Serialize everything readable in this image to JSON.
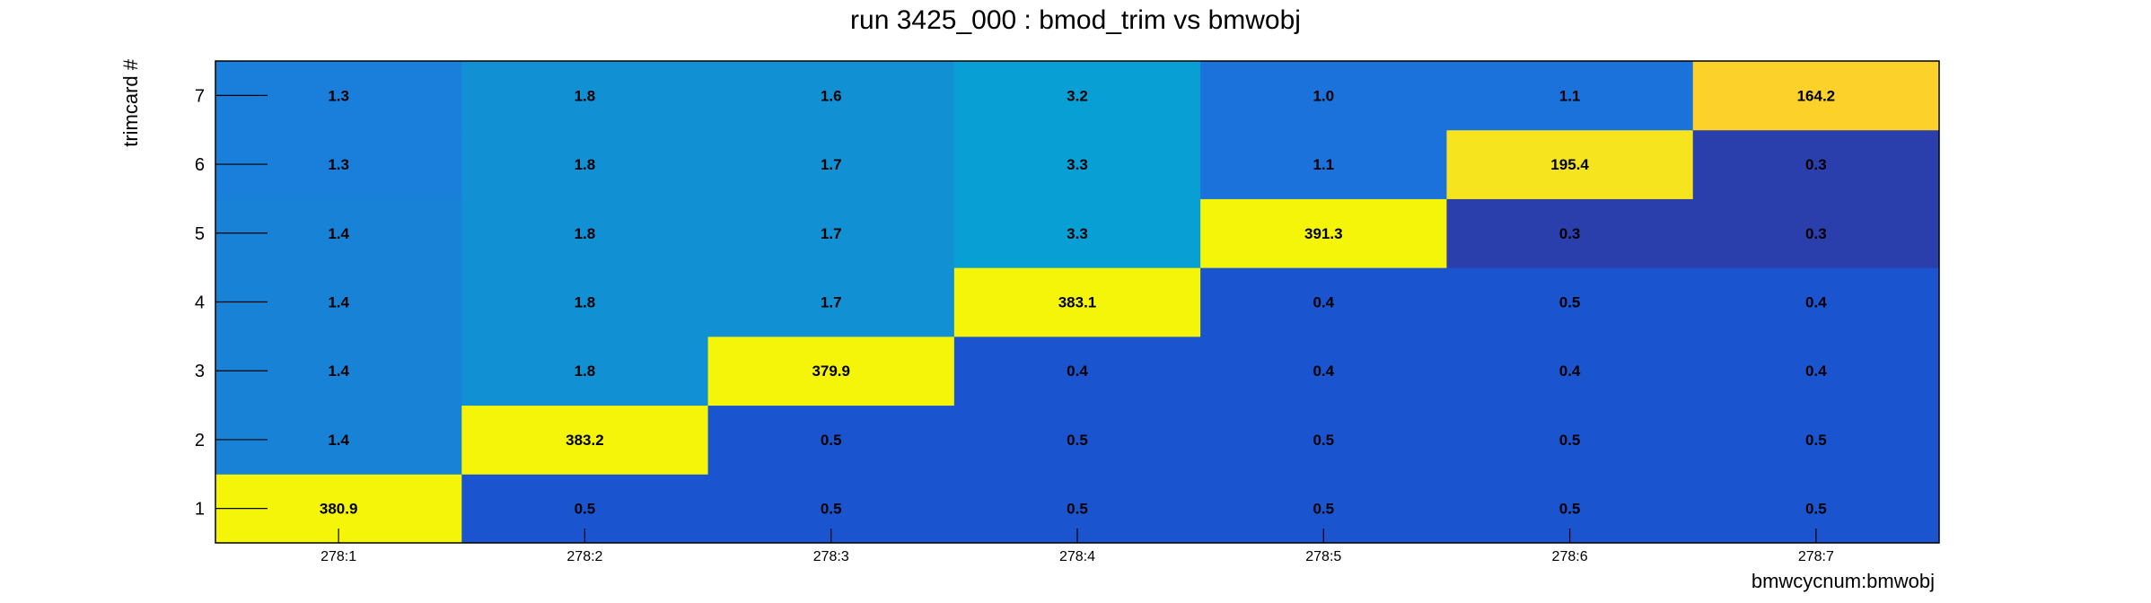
{
  "chart_data": {
    "type": "heatmap",
    "title": "run 3425_000 : bmod_trim vs bmwobj",
    "xlabel": "bmwcycnum:bmwobj",
    "ylabel": "trimcard #",
    "x_categories": [
      "278:1",
      "278:2",
      "278:3",
      "278:4",
      "278:5",
      "278:6",
      "278:7"
    ],
    "y_categories": [
      "1",
      "2",
      "3",
      "4",
      "5",
      "6",
      "7"
    ],
    "values": [
      [
        "380.9",
        "0.5",
        "0.5",
        "0.5",
        "0.5",
        "0.5",
        "0.5"
      ],
      [
        "1.4",
        "383.2",
        "0.5",
        "0.5",
        "0.5",
        "0.5",
        "0.5"
      ],
      [
        "1.4",
        "1.8",
        "379.9",
        "0.4",
        "0.4",
        "0.4",
        "0.4"
      ],
      [
        "1.4",
        "1.8",
        "1.7",
        "383.1",
        "0.4",
        "0.5",
        "0.4"
      ],
      [
        "1.4",
        "1.8",
        "1.7",
        "3.3",
        "391.3",
        "0.3",
        "0.3"
      ],
      [
        "1.3",
        "1.8",
        "1.7",
        "3.3",
        "1.1",
        "195.4",
        "0.3"
      ],
      [
        "1.3",
        "1.8",
        "1.6",
        "3.2",
        "1.0",
        "1.1",
        "164.2"
      ]
    ],
    "cell_colors": [
      [
        "#f5f50a",
        "#1a54cf",
        "#1a54cf",
        "#1a54cf",
        "#1a54cf",
        "#1a54cf",
        "#1a54cf"
      ],
      [
        "#1883d6",
        "#f5f50a",
        "#1a54cf",
        "#1a54cf",
        "#1a54cf",
        "#1a54cf",
        "#1a54cf"
      ],
      [
        "#1883d6",
        "#1290d4",
        "#f5f50a",
        "#1a54cf",
        "#1a54cf",
        "#1a54cf",
        "#1a54cf"
      ],
      [
        "#1883d6",
        "#1290d4",
        "#1290d4",
        "#f5f50a",
        "#1a54cf",
        "#1a54cf",
        "#1a54cf"
      ],
      [
        "#1883d6",
        "#1290d4",
        "#1290d4",
        "#08a0d4",
        "#f5f50a",
        "#2a3fab",
        "#2a3fab"
      ],
      [
        "#1a7fda",
        "#1290d4",
        "#1290d4",
        "#08a0d4",
        "#1a72da",
        "#f5e41e",
        "#2a3fab"
      ],
      [
        "#1a7fda",
        "#1290d4",
        "#1290d4",
        "#08a0d4",
        "#1a72da",
        "#1a72da",
        "#fbd12a"
      ]
    ],
    "grid": false,
    "legend": "none"
  }
}
